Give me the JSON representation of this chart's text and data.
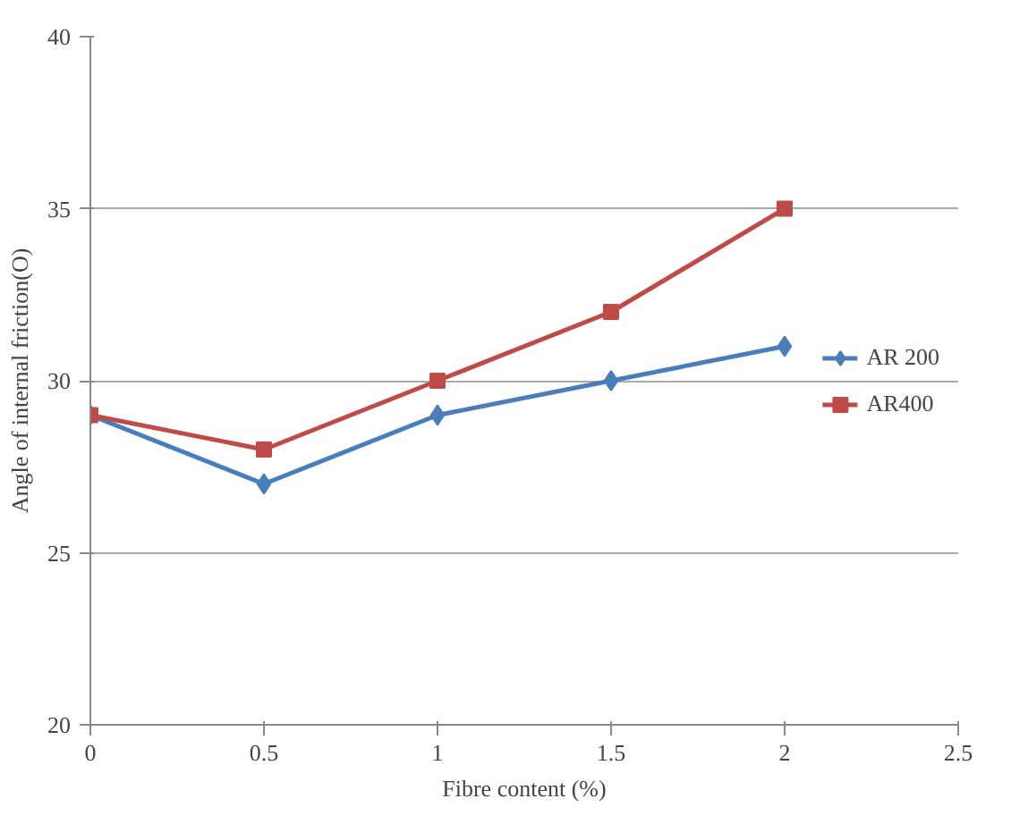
{
  "chart_data": {
    "type": "line",
    "xlabel": "Fibre content (%)",
    "ylabel": "Angle of internal friction(O)",
    "x": [
      0,
      0.5,
      1,
      1.5,
      2
    ],
    "series": [
      {
        "name": "AR 200",
        "color": "#4a7ebb",
        "marker": "diamond",
        "values": [
          29,
          27,
          29,
          30,
          31
        ]
      },
      {
        "name": "AR400",
        "color": "#be4b48",
        "marker": "square",
        "values": [
          29,
          28,
          30,
          32,
          35
        ]
      }
    ],
    "xlim": [
      0,
      2.5
    ],
    "xticks": [
      0,
      0.5,
      1,
      1.5,
      2,
      2.5
    ],
    "ylim": [
      20,
      40
    ],
    "yticks": [
      20,
      25,
      30,
      35,
      40
    ],
    "grid": "y",
    "legend": "right",
    "line_style": "solid"
  }
}
